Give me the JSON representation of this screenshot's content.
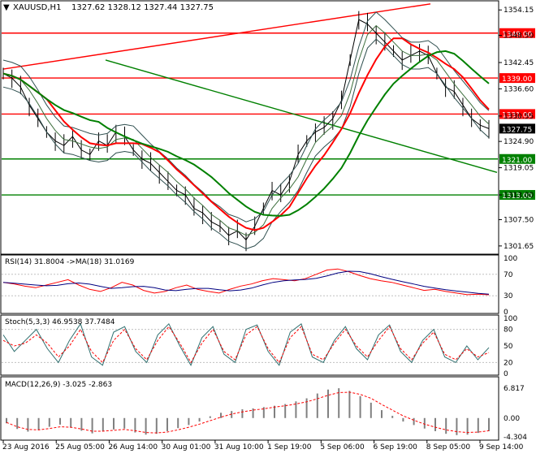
{
  "main_panel": {
    "symbol_label": "XAUUSD,H1",
    "ohlc_text": "1327.62 1328.12 1327.44 1327.75",
    "price_labels": [
      "1354.15",
      "1348.50",
      "1342.45",
      "1336.60",
      "1330.55",
      "1324.90",
      "1319.05",
      "1313.00",
      "1307.50",
      "1301.65"
    ],
    "horizontal_levels": [
      {
        "value": 1349.0,
        "label": "1349.00",
        "color": "#ff0000"
      },
      {
        "value": 1339.0,
        "label": "1339.00",
        "color": "#ff0000"
      },
      {
        "value": 1331.0,
        "label": "1331.00",
        "color": "#ff0000"
      },
      {
        "value": 1321.0,
        "label": "1321.00",
        "color": "#008000"
      },
      {
        "value": 1313.0,
        "label": "1313.00",
        "color": "#008000"
      }
    ],
    "current_price": "1327.75"
  },
  "rsi_panel": {
    "title": "RSI(14) 31.8004 ->MA(18) 31.0169",
    "scale": [
      "100",
      "70",
      "30",
      "0"
    ]
  },
  "stoch_panel": {
    "title": "Stoch(5,3,3) 46.9538 37.7484",
    "scale": [
      "100",
      "80",
      "50",
      "20",
      "0"
    ]
  },
  "macd_panel": {
    "title": "MACD(12,26,9) -3.025 -2.863",
    "scale": [
      "6.817",
      "0.00",
      "-4.304"
    ]
  },
  "time_axis": [
    "23 Aug 2016",
    "25 Aug 05:00",
    "26 Aug 14:00",
    "30 Aug 01:00",
    "31 Aug 10:00",
    "1 Sep 19:00",
    "5 Sep 06:00",
    "6 Sep 19:00",
    "8 Sep 05:00",
    "9 Sep 14:00"
  ],
  "chart_data": {
    "type": "line",
    "title": "XAUUSD,H1",
    "ylim": [
      1300.0,
      1356.0
    ],
    "series": [
      {
        "name": "XAUUSD,H1",
        "values": [
          1340,
          1339,
          1337,
          1333,
          1330,
          1327,
          1325,
          1324,
          1326,
          1323,
          1322,
          1325,
          1324,
          1327,
          1326,
          1323,
          1321,
          1320,
          1318,
          1316,
          1314,
          1313,
          1310,
          1309,
          1307,
          1306,
          1304,
          1305,
          1303,
          1306,
          1310,
          1314,
          1313,
          1316,
          1322,
          1325,
          1327,
          1328,
          1330,
          1334,
          1343,
          1352,
          1351,
          1349,
          1347,
          1345,
          1343,
          1344,
          1345,
          1344,
          1340,
          1337,
          1336,
          1333,
          1330,
          1328.5,
          1327.75
        ]
      }
    ],
    "rsi": {
      "values": [
        55,
        52,
        48,
        45,
        50,
        55,
        60,
        50,
        42,
        38,
        45,
        55,
        50,
        40,
        35,
        38,
        45,
        50,
        42,
        38,
        35,
        42,
        48,
        52,
        58,
        62,
        60,
        58,
        62,
        70,
        78,
        80,
        75,
        68,
        62,
        58,
        55,
        50,
        45,
        40,
        42,
        38,
        35,
        32,
        33,
        31.8
      ]
    },
    "stoch": {
      "main": [
        70,
        40,
        60,
        80,
        45,
        20,
        60,
        90,
        30,
        15,
        75,
        85,
        40,
        20,
        70,
        90,
        50,
        15,
        65,
        85,
        35,
        20,
        80,
        88,
        40,
        15,
        75,
        90,
        30,
        20,
        60,
        85,
        45,
        25,
        70,
        88,
        40,
        20,
        60,
        80,
        30,
        20,
        50,
        25,
        47
      ],
      "signal": [
        60,
        50,
        55,
        70,
        55,
        30,
        50,
        80,
        40,
        20,
        60,
        80,
        45,
        25,
        60,
        85,
        55,
        20,
        55,
        80,
        40,
        25,
        70,
        85,
        45,
        20,
        65,
        85,
        35,
        25,
        55,
        80,
        50,
        30,
        60,
        85,
        45,
        25,
        55,
        75,
        35,
        25,
        45,
        30,
        38
      ]
    },
    "macd": {
      "hist": [
        -1.2,
        -2.5,
        -3.1,
        -2.8,
        -2.0,
        -1.5,
        -2.2,
        -2.9,
        -3.5,
        -3.0,
        -2.6,
        -2.4,
        -3.3,
        -3.8,
        -3.6,
        -3.0,
        -2.3,
        -1.6,
        -0.8,
        0.4,
        1.2,
        1.6,
        2.0,
        2.2,
        2.5,
        2.8,
        3.2,
        3.8,
        4.5,
        5.6,
        6.5,
        6.8,
        6.2,
        5.0,
        3.5,
        1.8,
        0.5,
        -0.8,
        -1.6,
        -2.4,
        -3.0,
        -3.6,
        -3.9,
        -3.8,
        -3.4,
        -3.0
      ],
      "signal": [
        -1.0,
        -2.0,
        -2.6,
        -2.7,
        -2.4,
        -2.0,
        -2.1,
        -2.5,
        -3.0,
        -3.0,
        -2.8,
        -2.6,
        -2.9,
        -3.3,
        -3.4,
        -3.2,
        -2.7,
        -2.1,
        -1.4,
        -0.6,
        0.2,
        0.9,
        1.4,
        1.8,
        2.1,
        2.5,
        2.8,
        3.2,
        3.7,
        4.4,
        5.2,
        5.8,
        5.9,
        5.4,
        4.5,
        3.1,
        1.8,
        0.5,
        -0.5,
        -1.4,
        -2.1,
        -2.7,
        -3.1,
        -3.3,
        -3.2,
        -2.9
      ]
    }
  }
}
